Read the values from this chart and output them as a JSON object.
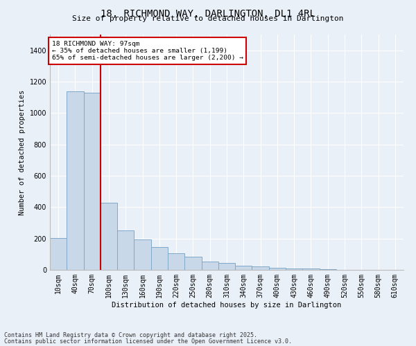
{
  "title1": "18, RICHMOND WAY, DARLINGTON, DL1 4RL",
  "title2": "Size of property relative to detached houses in Darlington",
  "xlabel": "Distribution of detached houses by size in Darlington",
  "ylabel": "Number of detached properties",
  "categories": [
    "10sqm",
    "40sqm",
    "70sqm",
    "100sqm",
    "130sqm",
    "160sqm",
    "190sqm",
    "220sqm",
    "250sqm",
    "280sqm",
    "310sqm",
    "340sqm",
    "370sqm",
    "400sqm",
    "430sqm",
    "460sqm",
    "490sqm",
    "520sqm",
    "550sqm",
    "580sqm",
    "610sqm"
  ],
  "values": [
    205,
    1140,
    1130,
    430,
    250,
    195,
    145,
    105,
    85,
    55,
    45,
    25,
    22,
    12,
    10,
    8,
    3,
    2,
    1,
    0,
    1
  ],
  "bar_color": "#c8d8e8",
  "bar_edge_color": "#7fa8c8",
  "ylim": [
    0,
    1500
  ],
  "yticks": [
    0,
    200,
    400,
    600,
    800,
    1000,
    1200,
    1400
  ],
  "property_line_x": 2.5,
  "annotation_text": "18 RICHMOND WAY: 97sqm\n← 35% of detached houses are smaller (1,199)\n65% of semi-detached houses are larger (2,200) →",
  "annotation_box_color": "#ffffff",
  "annotation_box_edge": "#cc0000",
  "vline_color": "#cc0000",
  "footer1": "Contains HM Land Registry data © Crown copyright and database right 2025.",
  "footer2": "Contains public sector information licensed under the Open Government Licence v3.0.",
  "bg_color": "#eaf0f8",
  "plot_bg_color": "#eaf0f8",
  "grid_color": "#ffffff",
  "title_fontsize": 10,
  "subtitle_fontsize": 8,
  "axis_label_fontsize": 7.5,
  "tick_fontsize": 7,
  "annotation_fontsize": 6.8,
  "footer_fontsize": 6
}
